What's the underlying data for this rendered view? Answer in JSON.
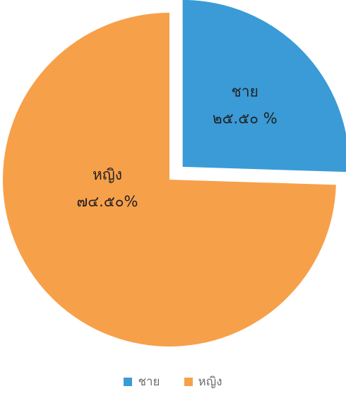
{
  "chart_data": {
    "type": "pie",
    "categories": [
      "ชาย",
      "หญิง"
    ],
    "values": [
      25.5,
      74.5
    ],
    "data_labels": [
      {
        "name": "ชาย",
        "value": "๒๕.๕๐ %"
      },
      {
        "name": "หญิง",
        "value": "๗๔.๕๐%"
      }
    ],
    "colors": [
      "#3a9bd7",
      "#f7a04a"
    ],
    "exploded": [
      "ชาย"
    ],
    "legend_position": "bottom",
    "legend": [
      "ชาย",
      "หญิง"
    ]
  }
}
